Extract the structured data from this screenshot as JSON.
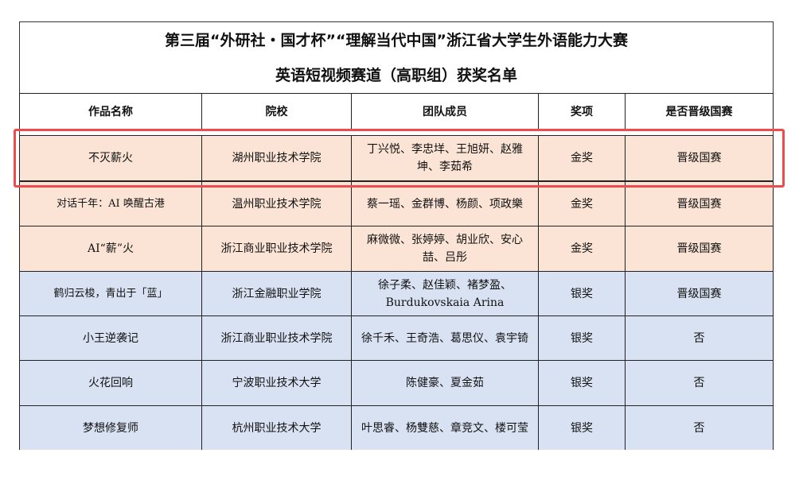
{
  "title_line1": "第三届“外研社・国才杯”“理解当代中国”浙江省大学生外语能力大赛",
  "title_line2": "英语短视频赛道（高职组）获奖名单",
  "headers": [
    "作品名称",
    "院校",
    "团队成员",
    "奖项",
    "是否晋级国赛"
  ],
  "rows": [
    [
      "不灭薪火",
      "湖州职业技术学院",
      "丁兴悦、李忠垟、王旭妍、赵雅坤、李茹希",
      "金奖",
      "晋级国赛"
    ],
    [
      "对话千年：AI 唤醒古港",
      "温州职业技术学院",
      "蔡一瑶、金群博、杨颜、项政樂",
      "金奖",
      "晋级国赛"
    ],
    [
      "AI“薪”火",
      "浙江商业职业技术学院",
      "麻微微、张婷婷、胡业欣、安心喆、吕彤",
      "金奖",
      "晋级国赛"
    ],
    [
      "鹤归云梭，青出于「蓝」",
      "浙江金融职业学院",
      "徐子柔、赵佳颖、褚梦盈、Burdukovskaia Arina",
      "银奖",
      "晋级国赛"
    ],
    [
      "小王逆袭记",
      "浙江商业职业技术学院",
      "徐千禾、王奇浩、葛思仪、袁宇锜",
      "银奖",
      "否"
    ],
    [
      "火花回响",
      "宁波职业技术大学",
      "陈健豪、夏金茹",
      "银奖",
      "否"
    ],
    [
      "梦想修复师",
      "杭州职业技术大学",
      "叶思睿、杨雙慈、章竞文、楼可莹",
      "银奖",
      "否"
    ]
  ],
  "colors": {
    "gold_row": "#fbe4d5",
    "silver_row": "#d9e2f3",
    "highlight": "#ee4c4c"
  }
}
